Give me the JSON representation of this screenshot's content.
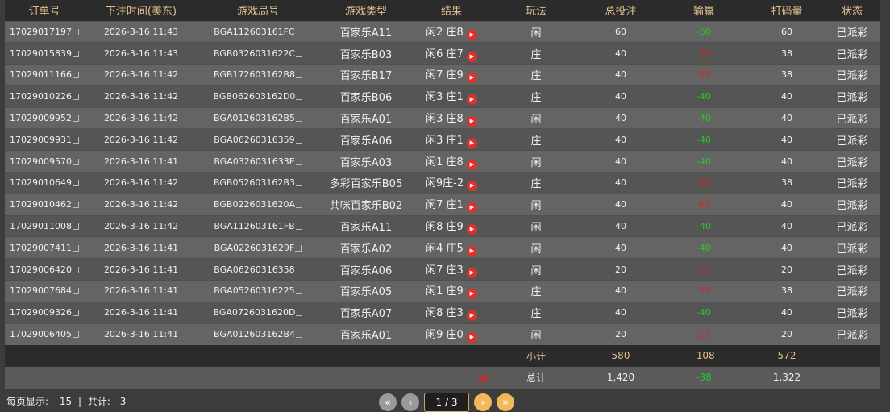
{
  "headers": [
    "订单号",
    "下注时间(美东)",
    "游戏局号",
    "游戏类型",
    "结果",
    "玩法",
    "总投注",
    "输赢",
    "打码量",
    "状态"
  ],
  "rows": [
    {
      "order": "17029017197",
      "time": "2026-3-16 11:43",
      "round": "BGA112603161FC",
      "game": "百家乐A11",
      "result": "闲2 庄8",
      "play": "闲",
      "bet": "60",
      "win": "-60",
      "valid": "60",
      "status": "已派彩"
    },
    {
      "order": "17029015839",
      "time": "2026-3-16 11:43",
      "round": "BGB0326031622C",
      "game": "百家乐B03",
      "result": "闲6 庄7",
      "play": "庄",
      "bet": "40",
      "win": "38",
      "valid": "38",
      "status": "已派彩"
    },
    {
      "order": "17029011166",
      "time": "2026-3-16 11:42",
      "round": "BGB172603162B8",
      "game": "百家乐B17",
      "result": "闲7 庄9",
      "play": "庄",
      "bet": "40",
      "win": "38",
      "valid": "38",
      "status": "已派彩"
    },
    {
      "order": "17029010226",
      "time": "2026-3-16 11:42",
      "round": "BGB062603162D0",
      "game": "百家乐B06",
      "result": "闲3 庄1",
      "play": "庄",
      "bet": "40",
      "win": "-40",
      "valid": "40",
      "status": "已派彩"
    },
    {
      "order": "17029009952",
      "time": "2026-3-16 11:42",
      "round": "BGA012603162B5",
      "game": "百家乐A01",
      "result": "闲3 庄8",
      "play": "闲",
      "bet": "40",
      "win": "-40",
      "valid": "40",
      "status": "已派彩"
    },
    {
      "order": "17029009931",
      "time": "2026-3-16 11:42",
      "round": "BGA06260316359",
      "game": "百家乐A06",
      "result": "闲3 庄1",
      "play": "庄",
      "bet": "40",
      "win": "-40",
      "valid": "40",
      "status": "已派彩"
    },
    {
      "order": "17029009570",
      "time": "2026-3-16 11:41",
      "round": "BGA0326031633E",
      "game": "百家乐A03",
      "result": "闲1 庄8",
      "play": "闲",
      "bet": "40",
      "win": "-40",
      "valid": "40",
      "status": "已派彩"
    },
    {
      "order": "17029010649",
      "time": "2026-3-16 11:42",
      "round": "BGB052603162B3",
      "game": "多彩百家乐B05",
      "result": "闲9庄-2",
      "play": "庄",
      "bet": "40",
      "win": "38",
      "valid": "38",
      "status": "已派彩"
    },
    {
      "order": "17029010462",
      "time": "2026-3-16 11:42",
      "round": "BGB0226031620A",
      "game": "共咪百家乐B02",
      "result": "闲7 庄1",
      "play": "闲",
      "bet": "40",
      "win": "40",
      "valid": "40",
      "status": "已派彩"
    },
    {
      "order": "17029011008",
      "time": "2026-3-16 11:42",
      "round": "BGA112603161FB",
      "game": "百家乐A11",
      "result": "闲8 庄9",
      "play": "闲",
      "bet": "40",
      "win": "-40",
      "valid": "40",
      "status": "已派彩"
    },
    {
      "order": "17029007411",
      "time": "2026-3-16 11:41",
      "round": "BGA0226031629F",
      "game": "百家乐A02",
      "result": "闲4 庄5",
      "play": "闲",
      "bet": "40",
      "win": "-40",
      "valid": "40",
      "status": "已派彩"
    },
    {
      "order": "17029006420",
      "time": "2026-3-16 11:41",
      "round": "BGA06260316358",
      "game": "百家乐A06",
      "result": "闲7 庄3",
      "play": "闲",
      "bet": "20",
      "win": "20",
      "valid": "20",
      "status": "已派彩"
    },
    {
      "order": "17029007684",
      "time": "2026-3-16 11:41",
      "round": "BGA05260316225",
      "game": "百家乐A05",
      "result": "闲1 庄9",
      "play": "庄",
      "bet": "40",
      "win": "38",
      "valid": "38",
      "status": "已派彩"
    },
    {
      "order": "17029009326",
      "time": "2026-3-16 11:41",
      "round": "BGA0726031620D",
      "game": "百家乐A07",
      "result": "闲8 庄3",
      "play": "庄",
      "bet": "40",
      "win": "-40",
      "valid": "40",
      "status": "已派彩"
    },
    {
      "order": "17029006405",
      "time": "2026-3-16 11:41",
      "round": "BGA012603162B4",
      "game": "百家乐A01",
      "result": "闲9 庄0",
      "play": "闲",
      "bet": "20",
      "win": "20",
      "valid": "20",
      "status": "已派彩"
    }
  ],
  "subtotal": {
    "label": "小计",
    "bet": "580",
    "win": "-108",
    "valid": "572"
  },
  "total": {
    "label": "总计",
    "bet": "1,420",
    "win": "-38",
    "valid": "1,322"
  },
  "footer": {
    "per_page_label": "每页显示:",
    "per_page": "15",
    "sep": "|",
    "total_label": "共计:",
    "total_pages": "3"
  },
  "pager": {
    "current": "1 / 3"
  },
  "colors": {
    "header_text": "#e2c08d",
    "loss": "#22cc22",
    "win": "#e02020"
  }
}
